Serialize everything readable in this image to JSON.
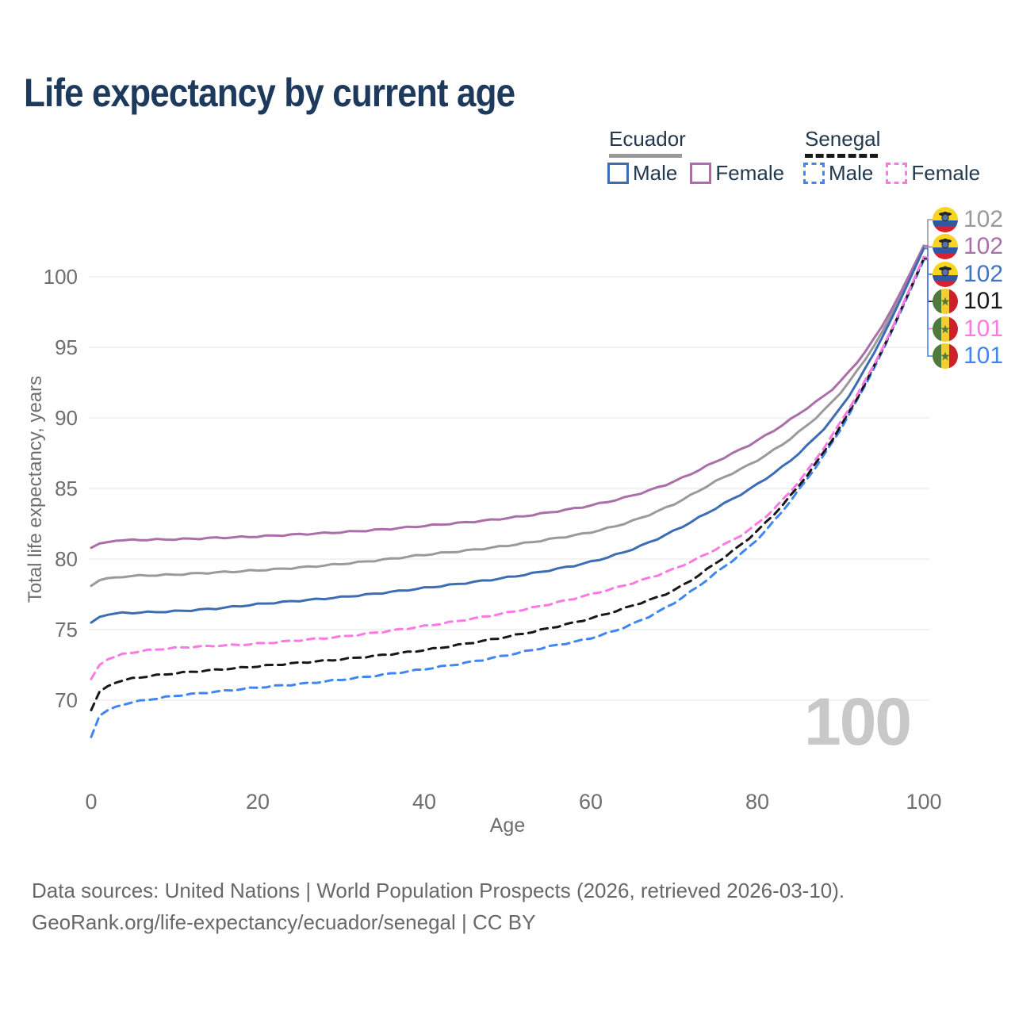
{
  "title": "Life expectancy by current age",
  "legend": {
    "groups": [
      {
        "name": "Ecuador",
        "style": "solid",
        "underline_color": "#9a9a9a",
        "items": [
          {
            "label": "Male",
            "color": "#3c6db4",
            "dashed": false
          },
          {
            "label": "Female",
            "color": "#aa6fa9",
            "dashed": false
          }
        ]
      },
      {
        "name": "Senegal",
        "style": "dashed",
        "underline_color": "#181818",
        "items": [
          {
            "label": "Male",
            "color": "#3f86f0",
            "dashed": true
          },
          {
            "label": "Female",
            "color": "#fb79e2",
            "dashed": true
          }
        ]
      }
    ]
  },
  "y_axis": {
    "title": "Total life expectancy, years",
    "ticks": [
      70,
      75,
      80,
      85,
      90,
      95,
      100
    ]
  },
  "x_axis": {
    "title": "Age",
    "ticks": [
      0,
      20,
      40,
      60,
      80,
      100
    ]
  },
  "watermark": "100",
  "footer": {
    "line1": "Data sources: United Nations | World Population Prospects (2026, retrieved 2026-03-10).",
    "line2": "GeoRank.org/life-expectancy/ecuador/senegal | CC BY"
  },
  "colors": {
    "title_text": "#1d3a5c",
    "legend_text": "#22394f",
    "axis_text": "#6e6e6e",
    "gridline": "#e9e9e9",
    "watermark": "#c8c8c8",
    "ecuador_male": "#3c6db4",
    "ecuador_female": "#aa6fa9",
    "ecuador_both": "#9a9a9a",
    "senegal_male": "#3f86f0",
    "senegal_female": "#fb79e2",
    "senegal_both": "#181818"
  },
  "chart_data": {
    "type": "line",
    "title": "Life expectancy by current age",
    "xlabel": "Age",
    "ylabel": "Total life expectancy, years",
    "xlim": [
      0,
      100
    ],
    "ylim": [
      67,
      103
    ],
    "grid": "horizontal",
    "x": [
      0,
      1,
      2,
      3,
      5,
      10,
      15,
      20,
      25,
      30,
      35,
      40,
      45,
      50,
      55,
      60,
      65,
      70,
      75,
      80,
      85,
      90,
      95,
      100
    ],
    "series": [
      {
        "key": "ec_b",
        "name": "Ecuador Both sexes",
        "color": "#9a9a9a",
        "dashed": false,
        "values": [
          78.1,
          78.5,
          78.65,
          78.7,
          78.8,
          78.9,
          79.05,
          79.2,
          79.4,
          79.65,
          79.95,
          80.3,
          80.6,
          80.95,
          81.4,
          81.9,
          82.7,
          83.9,
          85.5,
          87.0,
          89.0,
          91.8,
          96.1,
          102.1
        ]
      },
      {
        "key": "ec_f",
        "name": "Ecuador Female",
        "color": "#aa6fa9",
        "dashed": false,
        "values": [
          80.8,
          81.1,
          81.2,
          81.3,
          81.35,
          81.4,
          81.5,
          81.6,
          81.75,
          81.9,
          82.1,
          82.35,
          82.6,
          82.9,
          83.3,
          83.8,
          84.5,
          85.5,
          86.9,
          88.4,
          90.3,
          92.6,
          96.5,
          102.2
        ]
      },
      {
        "key": "ec_m",
        "name": "Ecuador Male",
        "color": "#3c6db4",
        "dashed": false,
        "values": [
          75.5,
          75.9,
          76.05,
          76.15,
          76.2,
          76.3,
          76.5,
          76.8,
          77.05,
          77.3,
          77.6,
          77.95,
          78.3,
          78.7,
          79.2,
          79.8,
          80.7,
          82.0,
          83.6,
          85.3,
          87.5,
          90.7,
          95.7,
          102.0
        ]
      },
      {
        "key": "sn_m",
        "name": "Senegal Male",
        "color": "#3f86f0",
        "dashed": true,
        "values": [
          67.4,
          68.9,
          69.3,
          69.55,
          69.85,
          70.3,
          70.6,
          70.9,
          71.15,
          71.45,
          71.8,
          72.2,
          72.65,
          73.2,
          73.8,
          74.4,
          75.4,
          76.9,
          79.0,
          81.4,
          84.9,
          89.2,
          94.7,
          101.2
        ]
      },
      {
        "key": "sn_b",
        "name": "Senegal Both sexes",
        "color": "#181818",
        "dashed": true,
        "values": [
          69.3,
          70.6,
          71.0,
          71.25,
          71.55,
          71.9,
          72.15,
          72.4,
          72.65,
          72.9,
          73.2,
          73.55,
          74.0,
          74.5,
          75.1,
          75.8,
          76.7,
          77.8,
          79.7,
          82.0,
          85.2,
          89.4,
          94.8,
          101.3
        ]
      },
      {
        "key": "sn_f",
        "name": "Senegal Female",
        "color": "#fb79e2",
        "dashed": true,
        "values": [
          71.5,
          72.5,
          72.9,
          73.1,
          73.4,
          73.7,
          73.85,
          74.0,
          74.25,
          74.5,
          74.85,
          75.25,
          75.7,
          76.2,
          76.8,
          77.5,
          78.3,
          79.3,
          80.7,
          82.5,
          85.5,
          89.7,
          94.9,
          101.4
        ]
      }
    ],
    "end_labels": [
      {
        "series": "ec_b",
        "value": "102",
        "flag": "ecuador",
        "color": "#9a9a9a"
      },
      {
        "series": "ec_f",
        "value": "102",
        "flag": "ecuador",
        "color": "#aa6fa9"
      },
      {
        "series": "ec_m",
        "value": "102",
        "flag": "ecuador",
        "color": "#4274c4"
      },
      {
        "series": "sn_b",
        "value": "101",
        "flag": "senegal",
        "color": "#181818"
      },
      {
        "series": "sn_f",
        "value": "101",
        "flag": "senegal",
        "color": "#fb79e2"
      },
      {
        "series": "sn_m",
        "value": "101",
        "flag": "senegal",
        "color": "#3f86f0"
      }
    ]
  }
}
